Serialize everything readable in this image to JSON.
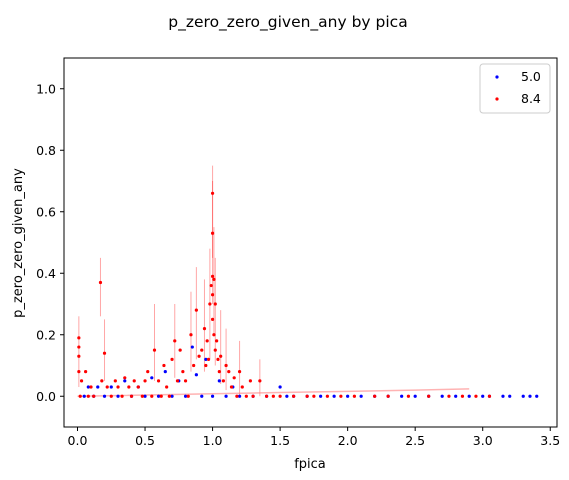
{
  "chart_data": {
    "type": "scatter",
    "title": "p_zero_zero_given_any by pica",
    "xlabel": "fpica",
    "ylabel": "p_zero_zero_given_any",
    "xlim": [
      -0.1,
      3.55
    ],
    "ylim": [
      -0.1,
      1.1
    ],
    "x_ticks": [
      0.0,
      0.5,
      1.0,
      1.5,
      2.0,
      2.5,
      3.0,
      3.5
    ],
    "x_tick_labels": [
      "0.0",
      "0.5",
      "1.0",
      "1.5",
      "2.0",
      "2.5",
      "3.0",
      "3.5"
    ],
    "y_ticks": [
      0.0,
      0.2,
      0.4,
      0.6,
      0.8,
      1.0
    ],
    "y_tick_labels": [
      "0.0",
      "0.2",
      "0.4",
      "0.6",
      "0.8",
      "1.0"
    ],
    "grid": false,
    "legend_position": "top-right",
    "series": [
      {
        "name": "5.0",
        "color": "#0000ff",
        "points": [
          [
            0.05,
            0.0
          ],
          [
            0.08,
            0.03
          ],
          [
            0.12,
            0.0
          ],
          [
            0.15,
            0.03
          ],
          [
            0.2,
            0.0
          ],
          [
            0.25,
            0.03
          ],
          [
            0.3,
            0.0
          ],
          [
            0.35,
            0.05
          ],
          [
            0.4,
            0.0
          ],
          [
            0.45,
            0.03
          ],
          [
            0.5,
            0.0
          ],
          [
            0.55,
            0.06
          ],
          [
            0.6,
            0.0
          ],
          [
            0.65,
            0.08
          ],
          [
            0.7,
            0.0
          ],
          [
            0.75,
            0.05
          ],
          [
            0.8,
            0.0
          ],
          [
            0.85,
            0.16
          ],
          [
            0.88,
            0.07
          ],
          [
            0.92,
            0.0
          ],
          [
            0.95,
            0.12
          ],
          [
            1.0,
            0.0
          ],
          [
            1.05,
            0.05
          ],
          [
            1.1,
            0.0
          ],
          [
            1.15,
            0.03
          ],
          [
            1.2,
            0.0
          ],
          [
            1.3,
            0.0
          ],
          [
            1.4,
            0.0
          ],
          [
            1.5,
            0.03
          ],
          [
            1.55,
            0.0
          ],
          [
            1.6,
            0.0
          ],
          [
            1.7,
            0.0
          ],
          [
            1.8,
            0.0
          ],
          [
            1.9,
            0.0
          ],
          [
            2.0,
            0.0
          ],
          [
            2.1,
            0.0
          ],
          [
            2.2,
            0.0
          ],
          [
            2.3,
            0.0
          ],
          [
            2.4,
            0.0
          ],
          [
            2.5,
            0.0
          ],
          [
            2.6,
            0.0
          ],
          [
            2.7,
            0.0
          ],
          [
            2.8,
            0.0
          ],
          [
            2.9,
            0.0
          ],
          [
            3.0,
            0.0
          ],
          [
            3.05,
            0.0
          ],
          [
            3.15,
            0.0
          ],
          [
            3.2,
            0.0
          ],
          [
            3.3,
            0.0
          ],
          [
            3.35,
            0.0
          ],
          [
            3.4,
            0.0
          ]
        ]
      },
      {
        "name": "8.4",
        "color": "#ff0000",
        "points": [
          [
            0.01,
            0.19
          ],
          [
            0.01,
            0.16
          ],
          [
            0.01,
            0.13
          ],
          [
            0.01,
            0.08
          ],
          [
            0.02,
            0.0
          ],
          [
            0.03,
            0.05
          ],
          [
            0.06,
            0.08
          ],
          [
            0.08,
            0.0
          ],
          [
            0.1,
            0.03
          ],
          [
            0.12,
            0.0
          ],
          [
            0.17,
            0.37
          ],
          [
            0.18,
            0.05
          ],
          [
            0.2,
            0.14
          ],
          [
            0.22,
            0.03
          ],
          [
            0.25,
            0.0
          ],
          [
            0.28,
            0.05
          ],
          [
            0.3,
            0.03
          ],
          [
            0.33,
            0.0
          ],
          [
            0.35,
            0.06
          ],
          [
            0.38,
            0.03
          ],
          [
            0.4,
            0.0
          ],
          [
            0.42,
            0.05
          ],
          [
            0.45,
            0.03
          ],
          [
            0.48,
            0.0
          ],
          [
            0.5,
            0.05
          ],
          [
            0.52,
            0.08
          ],
          [
            0.55,
            0.0
          ],
          [
            0.57,
            0.15
          ],
          [
            0.6,
            0.05
          ],
          [
            0.62,
            0.0
          ],
          [
            0.64,
            0.1
          ],
          [
            0.66,
            0.03
          ],
          [
            0.68,
            0.0
          ],
          [
            0.7,
            0.12
          ],
          [
            0.72,
            0.18
          ],
          [
            0.74,
            0.05
          ],
          [
            0.76,
            0.15
          ],
          [
            0.78,
            0.08
          ],
          [
            0.8,
            0.05
          ],
          [
            0.82,
            0.0
          ],
          [
            0.84,
            0.2
          ],
          [
            0.86,
            0.1
          ],
          [
            0.88,
            0.28
          ],
          [
            0.9,
            0.13
          ],
          [
            0.92,
            0.15
          ],
          [
            0.94,
            0.22
          ],
          [
            0.95,
            0.1
          ],
          [
            0.96,
            0.18
          ],
          [
            0.97,
            0.12
          ],
          [
            0.98,
            0.3
          ],
          [
            0.99,
            0.36
          ],
          [
            1.0,
            0.66
          ],
          [
            1.0,
            0.53
          ],
          [
            1.0,
            0.39
          ],
          [
            1.0,
            0.33
          ],
          [
            1.0,
            0.25
          ],
          [
            1.01,
            0.38
          ],
          [
            1.01,
            0.2
          ],
          [
            1.02,
            0.3
          ],
          [
            1.02,
            0.15
          ],
          [
            1.03,
            0.18
          ],
          [
            1.04,
            0.12
          ],
          [
            1.05,
            0.08
          ],
          [
            1.06,
            0.13
          ],
          [
            1.08,
            0.05
          ],
          [
            1.1,
            0.1
          ],
          [
            1.12,
            0.08
          ],
          [
            1.14,
            0.03
          ],
          [
            1.16,
            0.06
          ],
          [
            1.18,
            0.0
          ],
          [
            1.2,
            0.08
          ],
          [
            1.22,
            0.03
          ],
          [
            1.25,
            0.0
          ],
          [
            1.28,
            0.05
          ],
          [
            1.3,
            0.0
          ],
          [
            1.35,
            0.05
          ],
          [
            1.4,
            0.0
          ],
          [
            1.45,
            0.0
          ],
          [
            1.5,
            0.0
          ],
          [
            1.6,
            0.0
          ],
          [
            1.7,
            0.0
          ],
          [
            1.75,
            0.0
          ],
          [
            1.85,
            0.0
          ],
          [
            1.95,
            0.0
          ],
          [
            2.05,
            0.0
          ],
          [
            2.2,
            0.0
          ],
          [
            2.3,
            0.0
          ],
          [
            2.45,
            0.0
          ],
          [
            2.6,
            0.0
          ],
          [
            2.75,
            0.0
          ],
          [
            2.85,
            0.0
          ],
          [
            2.95,
            0.0
          ],
          [
            3.05,
            0.0
          ]
        ]
      }
    ],
    "error_bars_8.4": [
      [
        0.01,
        0.03,
        0.26
      ],
      [
        0.17,
        0.26,
        0.45
      ],
      [
        0.2,
        0.05,
        0.25
      ],
      [
        0.57,
        0.05,
        0.3
      ],
      [
        0.72,
        0.06,
        0.3
      ],
      [
        0.84,
        0.08,
        0.34
      ],
      [
        0.88,
        0.12,
        0.42
      ],
      [
        0.94,
        0.08,
        0.38
      ],
      [
        0.98,
        0.12,
        0.48
      ],
      [
        1.0,
        0.45,
        0.75
      ],
      [
        1.0,
        0.3,
        0.7
      ],
      [
        1.01,
        0.2,
        0.55
      ],
      [
        1.02,
        0.1,
        0.45
      ],
      [
        1.06,
        0.04,
        0.28
      ],
      [
        1.1,
        0.02,
        0.22
      ],
      [
        1.2,
        0.0,
        0.18
      ],
      [
        1.35,
        0.0,
        0.12
      ]
    ],
    "trend_lines": [
      {
        "series": "8.4",
        "x": [
          0.0,
          1.0,
          1.5,
          2.0,
          2.5,
          2.9
        ],
        "y": [
          0.0,
          0.008,
          0.012,
          0.016,
          0.02,
          0.024
        ]
      }
    ]
  }
}
